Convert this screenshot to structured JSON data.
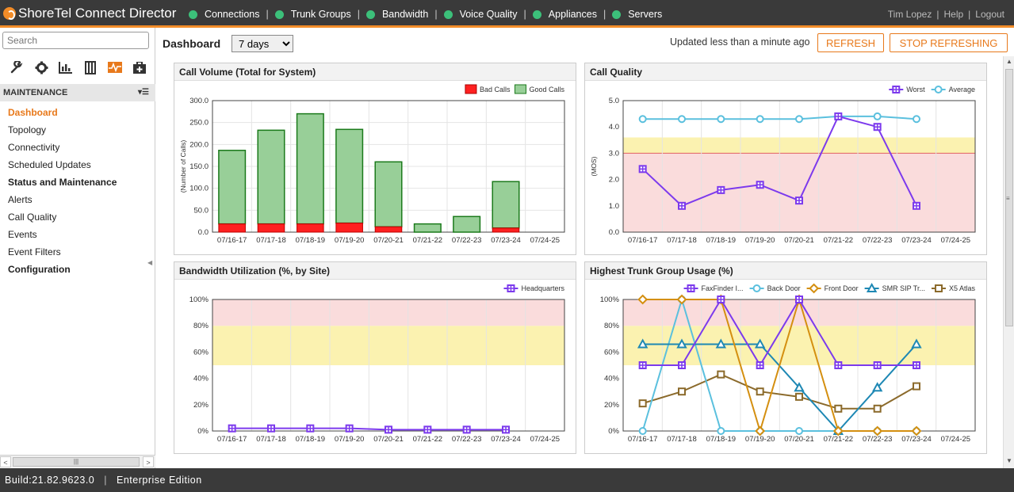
{
  "app": {
    "title": "ShoreTel Connect Director"
  },
  "topnav": [
    {
      "label": "Connections"
    },
    {
      "label": "Trunk Groups"
    },
    {
      "label": "Bandwidth"
    },
    {
      "label": "Voice Quality"
    },
    {
      "label": "Appliances"
    },
    {
      "label": "Servers"
    }
  ],
  "user": {
    "name": "Tim Lopez",
    "help": "Help",
    "logout": "Logout"
  },
  "sidebar": {
    "search_placeholder": "Search",
    "tools": [
      "wrench-icon",
      "gear-icon",
      "chart-icon",
      "building-icon",
      "monitor-icon",
      "toolbox-icon"
    ],
    "section": "MAINTENANCE",
    "items": [
      {
        "label": "Dashboard",
        "type": "active"
      },
      {
        "label": "Topology",
        "type": "item"
      },
      {
        "label": "Connectivity",
        "type": "item"
      },
      {
        "label": "Scheduled Updates",
        "type": "item"
      },
      {
        "label": "Status and Maintenance",
        "type": "group"
      },
      {
        "label": "Alerts",
        "type": "item"
      },
      {
        "label": "Call Quality",
        "type": "item"
      },
      {
        "label": "Events",
        "type": "item"
      },
      {
        "label": "Event Filters",
        "type": "item"
      },
      {
        "label": "Configuration",
        "type": "group"
      }
    ]
  },
  "main": {
    "title": "Dashboard",
    "range": "7 days",
    "updated": "Updated less than a minute ago",
    "refresh": "REFRESH",
    "stop": "STOP REFRESHING"
  },
  "footer": {
    "build": "Build:21.82.9623.0",
    "edition": "Enterprise Edition"
  },
  "colors": {
    "accent": "#e8791b",
    "bad": "#ff2020",
    "good": "#98cf98",
    "good_border": "#1b7a1b",
    "purple": "#7c3aed",
    "cyan": "#5bc0de",
    "gold": "#d48f10",
    "teal": "#1e88b4",
    "brown": "#8b6a2b",
    "red_zone": "#fadcdc",
    "yellow_zone": "#fbf2b0"
  },
  "chart_data": [
    {
      "type": "bar",
      "title": "Call Volume (Total for System)",
      "ylabel": "(Number of Calls)",
      "categories": [
        "07/16-17",
        "07/17-18",
        "07/18-19",
        "07/19-20",
        "07/20-21",
        "07/21-22",
        "07/22-23",
        "07/23-24",
        "07/24-25"
      ],
      "yticks": [
        "0.0",
        "50.0",
        "100.0",
        "150.0",
        "200.0",
        "250.0",
        "300.0"
      ],
      "ylim": [
        0,
        320
      ],
      "series": [
        {
          "name": "Bad Calls",
          "values": [
            20,
            20,
            20,
            22,
            13,
            0,
            0,
            10,
            null
          ]
        },
        {
          "name": "Good Calls",
          "values": [
            179,
            228,
            268,
            228,
            158,
            20,
            38,
            113,
            null
          ]
        }
      ]
    },
    {
      "type": "line",
      "title": "Call Quality",
      "ylabel": "(MOS)",
      "categories": [
        "07/16-17",
        "07/17-18",
        "07/18-19",
        "07/19-20",
        "07/20-21",
        "07/21-22",
        "07/22-23",
        "07/23-24",
        "07/24-25"
      ],
      "yticks": [
        "0.0",
        "1.0",
        "2.0",
        "3.0",
        "4.0",
        "5.0"
      ],
      "ylim": [
        0,
        5
      ],
      "series": [
        {
          "name": "Worst",
          "values": [
            2.4,
            1.0,
            1.6,
            1.8,
            1.2,
            4.4,
            4.0,
            1.0,
            null
          ]
        },
        {
          "name": "Average",
          "values": [
            4.3,
            4.3,
            4.3,
            4.3,
            4.3,
            4.4,
            4.4,
            4.3,
            null
          ]
        }
      ]
    },
    {
      "type": "line",
      "title": "Bandwidth Utilization (%, by Site)",
      "categories": [
        "07/16-17",
        "07/17-18",
        "07/18-19",
        "07/19-20",
        "07/20-21",
        "07/21-22",
        "07/22-23",
        "07/23-24",
        "07/24-25"
      ],
      "yticks": [
        "0%",
        "20%",
        "40%",
        "60%",
        "80%",
        "100%"
      ],
      "ylim": [
        0,
        100
      ],
      "series": [
        {
          "name": "Headquarters",
          "values": [
            2,
            2,
            2,
            2,
            1,
            1,
            1,
            1,
            null
          ]
        }
      ]
    },
    {
      "type": "line",
      "title": "Highest Trunk Group Usage (%)",
      "categories": [
        "07/16-17",
        "07/17-18",
        "07/18-19",
        "07/19-20",
        "07/20-21",
        "07/21-22",
        "07/22-23",
        "07/23-24",
        "07/24-25"
      ],
      "yticks": [
        "0%",
        "20%",
        "40%",
        "60%",
        "80%",
        "100%"
      ],
      "ylim": [
        0,
        100
      ],
      "series": [
        {
          "name": "FaxFinder I...",
          "values": [
            50,
            50,
            100,
            50,
            100,
            50,
            50,
            50,
            null
          ]
        },
        {
          "name": "Back Door",
          "values": [
            0,
            100,
            0,
            0,
            0,
            0,
            0,
            0,
            null
          ]
        },
        {
          "name": "Front Door",
          "values": [
            100,
            100,
            100,
            0,
            100,
            0,
            0,
            0,
            null
          ]
        },
        {
          "name": "SMR SIP Tr...",
          "values": [
            66,
            66,
            66,
            66,
            33,
            0,
            33,
            66,
            null
          ]
        },
        {
          "name": "X5 Atlas",
          "values": [
            21,
            30,
            43,
            30,
            26,
            17,
            17,
            34,
            null
          ]
        }
      ]
    }
  ]
}
